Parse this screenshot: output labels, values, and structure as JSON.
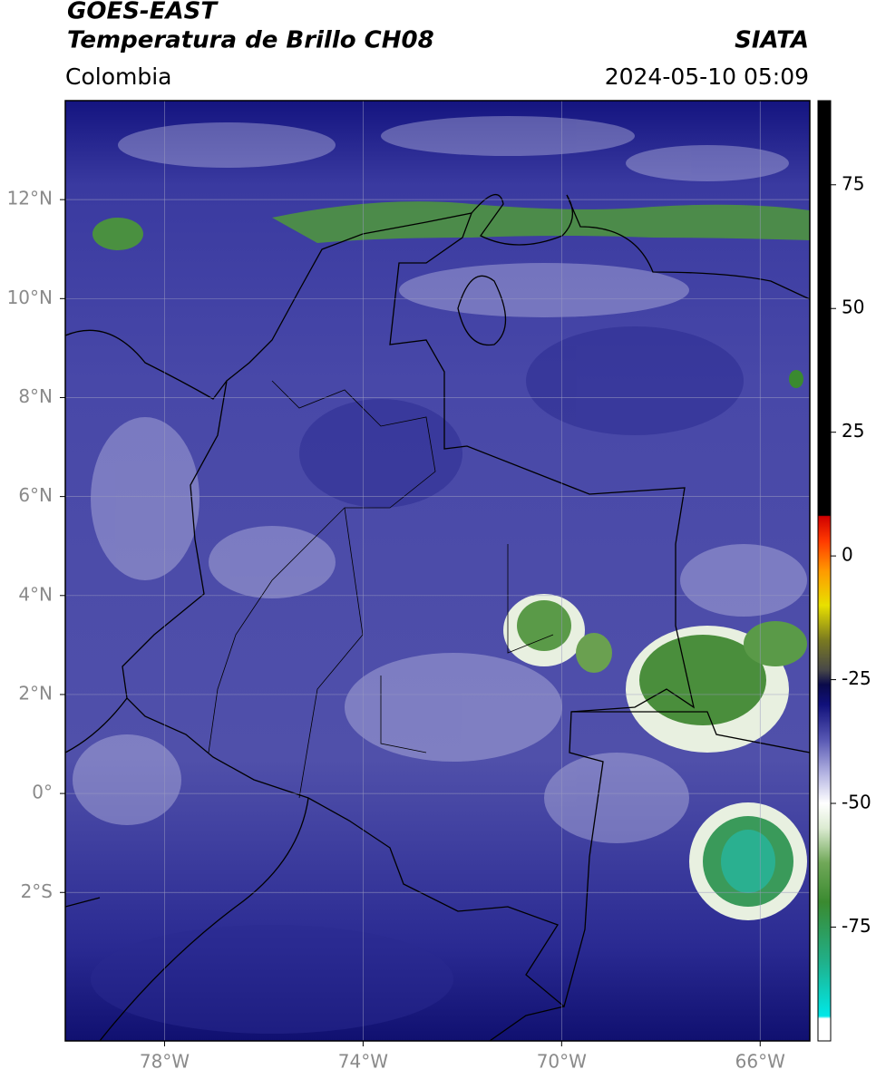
{
  "header": {
    "title": "GOES-EAST",
    "subtitle": "Temperatura de Brillo CH08",
    "source": "SIATA",
    "region": "Colombia",
    "datetime": "2024-05-10 05:09"
  },
  "map": {
    "xlim": [
      -80,
      -65
    ],
    "ylim": [
      -5,
      14
    ],
    "grid": true,
    "xticks": [
      {
        "value": -78,
        "label": "78°W"
      },
      {
        "value": -74,
        "label": "74°W"
      },
      {
        "value": -70,
        "label": "70°W"
      },
      {
        "value": -66,
        "label": "66°W"
      }
    ],
    "yticks": [
      {
        "value": 12,
        "label": "12°N"
      },
      {
        "value": 10,
        "label": "10°N"
      },
      {
        "value": 8,
        "label": "8°N"
      },
      {
        "value": 6,
        "label": "6°N"
      },
      {
        "value": 4,
        "label": "4°N"
      },
      {
        "value": 2,
        "label": "2°N"
      },
      {
        "value": 0,
        "label": "0°"
      },
      {
        "value": -2,
        "label": "2°S"
      }
    ]
  },
  "colorbar": {
    "lim": [
      -98,
      92
    ],
    "ticks": [
      75,
      50,
      25,
      0,
      -25,
      -50,
      -75
    ],
    "stops": [
      {
        "value": -98,
        "color": "#ffffff"
      },
      {
        "value": -93.5,
        "color": "#ffffff"
      },
      {
        "value": -93,
        "color": "#00e8e8"
      },
      {
        "value": -82,
        "color": "#20b08a"
      },
      {
        "value": -70,
        "color": "#3a8a30"
      },
      {
        "value": -62,
        "color": "#70a858"
      },
      {
        "value": -55,
        "color": "#dcebd2"
      },
      {
        "value": -50,
        "color": "#ffffff"
      },
      {
        "value": -44,
        "color": "#b4b4e2"
      },
      {
        "value": -37,
        "color": "#5656b2"
      },
      {
        "value": -30,
        "color": "#10107a"
      },
      {
        "value": -26,
        "color": "#0a0a4a"
      },
      {
        "value": -23,
        "color": "#484848"
      },
      {
        "value": -17,
        "color": "#7a7a20"
      },
      {
        "value": -10,
        "color": "#e8e000"
      },
      {
        "value": -3,
        "color": "#ff9900"
      },
      {
        "value": 3,
        "color": "#ff3a00"
      },
      {
        "value": 8,
        "color": "#d00000"
      },
      {
        "value": 8.2,
        "color": "#000000"
      },
      {
        "value": 92,
        "color": "#000000"
      }
    ]
  }
}
